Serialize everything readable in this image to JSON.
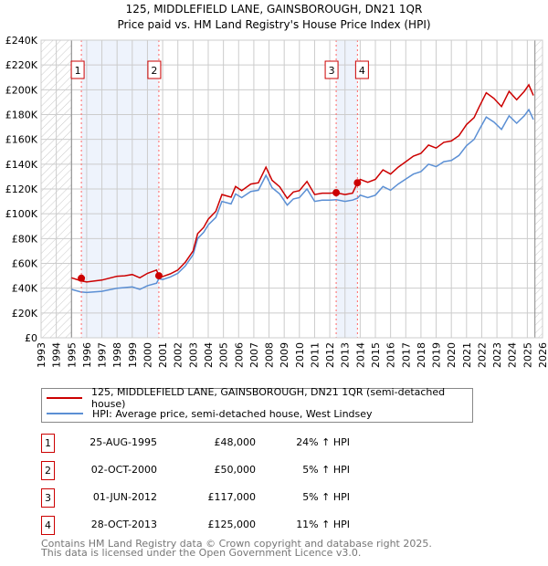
{
  "chart_data": {
    "type": "line",
    "title": "125, MIDDLEFIELD LANE, GAINSBOROUGH, DN21 1QR",
    "subtitle": "Price paid vs. HM Land Registry's House Price Index (HPI)",
    "xlim": [
      1993,
      2026
    ],
    "ylim": [
      0,
      240000
    ],
    "x_ticks": [
      "1993",
      "1994",
      "1995",
      "1996",
      "1997",
      "1998",
      "1999",
      "2000",
      "2001",
      "2002",
      "2003",
      "2004",
      "2005",
      "2006",
      "2007",
      "2008",
      "2009",
      "2010",
      "2011",
      "2012",
      "2013",
      "2014",
      "2015",
      "2016",
      "2017",
      "2018",
      "2019",
      "2020",
      "2021",
      "2022",
      "2023",
      "2024",
      "2025",
      "2026"
    ],
    "y_ticks": [
      {
        "v": 0,
        "label": "£0"
      },
      {
        "v": 20000,
        "label": "£20K"
      },
      {
        "v": 40000,
        "label": "£40K"
      },
      {
        "v": 60000,
        "label": "£60K"
      },
      {
        "v": 80000,
        "label": "£80K"
      },
      {
        "v": 100000,
        "label": "£100K"
      },
      {
        "v": 120000,
        "label": "£120K"
      },
      {
        "v": 140000,
        "label": "£140K"
      },
      {
        "v": 160000,
        "label": "£160K"
      },
      {
        "v": 180000,
        "label": "£180K"
      },
      {
        "v": 200000,
        "label": "£200K"
      },
      {
        "v": 220000,
        "label": "£220K"
      },
      {
        "v": 240000,
        "label": "£240K"
      }
    ],
    "grid": true,
    "hatched_ranges": [
      [
        1993,
        1995
      ],
      [
        2025.5,
        2026
      ]
    ],
    "shaded_ranges": [
      [
        1995.65,
        2000.75
      ],
      [
        2012.42,
        2013.82
      ]
    ],
    "x": [
      1995.0,
      1995.6,
      1996,
      1997,
      1998,
      1998.5,
      1999,
      1999.5,
      2000,
      2000.6,
      2000.75,
      2001,
      2001.5,
      2002,
      2002.5,
      2003,
      2003.3,
      2003.7,
      2004,
      2004.5,
      2004.9,
      2005.5,
      2005.8,
      2006.2,
      2006.8,
      2007.3,
      2007.8,
      2008.2,
      2008.7,
      2009.2,
      2009.6,
      2010,
      2010.5,
      2011,
      2011.5,
      2012,
      2012.42,
      2013,
      2013.5,
      2013.82,
      2014,
      2014.5,
      2015,
      2015.5,
      2016,
      2016.5,
      2017,
      2017.5,
      2018,
      2018.5,
      2019,
      2019.5,
      2020,
      2020.5,
      2021,
      2021.5,
      2021.8,
      2022.3,
      2022.8,
      2023.3,
      2023.8,
      2024.3,
      2024.8,
      2025.1,
      2025.4
    ],
    "series": [
      {
        "name": "125, MIDDLEFIELD LANE, GAINSBOROUGH, DN21 1QR (semi-detached house)",
        "color": "#cc0000",
        "values": [
          48400,
          46000,
          45000,
          46500,
          49600,
          50000,
          51000,
          48400,
          52000,
          54600,
          50000,
          49400,
          51500,
          54600,
          61000,
          70000,
          84000,
          89000,
          95600,
          102000,
          115500,
          113400,
          122000,
          118700,
          124000,
          125000,
          137600,
          127000,
          121800,
          112400,
          117600,
          118700,
          126000,
          115500,
          116600,
          116600,
          117000,
          115500,
          116600,
          125000,
          127700,
          125400,
          127700,
          135400,
          132000,
          137600,
          142000,
          146500,
          148700,
          155400,
          153000,
          157600,
          158700,
          163000,
          172000,
          177600,
          185400,
          197600,
          193000,
          186500,
          198700,
          192000,
          198700,
          204000,
          195400
        ]
      },
      {
        "name": "HPI: Average price, semi-detached house, West Lindsey",
        "color": "#5b8fd4",
        "values": [
          39000,
          37000,
          36500,
          37500,
          40000,
          40500,
          41000,
          39000,
          42000,
          44000,
          47600,
          47000,
          49000,
          52000,
          58000,
          67000,
          80000,
          85000,
          91000,
          97000,
          110000,
          108000,
          116000,
          113000,
          118000,
          119000,
          131000,
          121000,
          116000,
          107000,
          112000,
          113000,
          120000,
          110000,
          111000,
          111000,
          111400,
          110000,
          111000,
          112600,
          115000,
          113000,
          115000,
          122000,
          119000,
          124000,
          128000,
          132000,
          134000,
          140000,
          138000,
          142000,
          143000,
          147000,
          155000,
          160000,
          167000,
          178000,
          174000,
          168000,
          179000,
          173000,
          179000,
          184000,
          176000
        ]
      }
    ],
    "sales": [
      {
        "num": "1",
        "x": 1995.65,
        "date": "25-AUG-1995",
        "price": 48000,
        "price_label": "£48,000",
        "hpi": "24% ↑ HPI"
      },
      {
        "num": "2",
        "x": 2000.75,
        "date": "02-OCT-2000",
        "price": 50000,
        "price_label": "£50,000",
        "hpi": "5% ↑ HPI"
      },
      {
        "num": "3",
        "x": 2012.42,
        "date": "01-JUN-2012",
        "price": 117000,
        "price_label": "£117,000",
        "hpi": "5% ↑ HPI"
      },
      {
        "num": "4",
        "x": 2013.82,
        "date": "28-OCT-2013",
        "price": 125000,
        "price_label": "£125,000",
        "hpi": "11% ↑ HPI"
      }
    ]
  },
  "footer": {
    "line1": "Contains HM Land Registry data © Crown copyright and database right 2025.",
    "line2": "This data is licensed under the Open Government Licence v3.0."
  }
}
